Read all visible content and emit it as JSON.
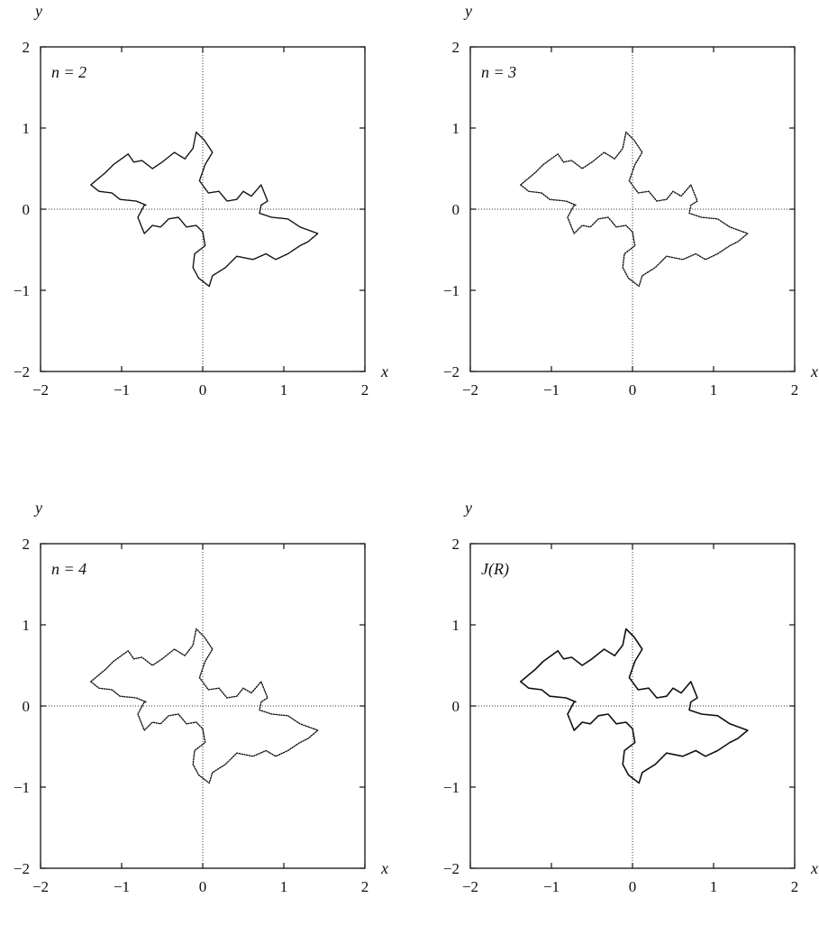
{
  "chart_data": [
    {
      "type": "scatter",
      "panel_label": "n = 2",
      "xlabel": "x",
      "ylabel": "y",
      "xlim": [
        -2,
        2
      ],
      "ylim": [
        -2,
        2
      ],
      "xticks": [
        "−2",
        "−1",
        "0",
        "1",
        "2"
      ],
      "yticks": [
        "−2",
        "−1",
        "0",
        "1",
        "2"
      ],
      "zero_lines": "dotted",
      "points": "dense dotted point set approximating the Julia set",
      "outline": [
        [
          -1.38,
          0.3
        ],
        [
          -1.2,
          0.45
        ],
        [
          -1.1,
          0.55
        ],
        [
          -0.92,
          0.68
        ],
        [
          -0.85,
          0.58
        ],
        [
          -0.75,
          0.6
        ],
        [
          -0.62,
          0.5
        ],
        [
          -0.5,
          0.58
        ],
        [
          -0.35,
          0.7
        ],
        [
          -0.22,
          0.62
        ],
        [
          -0.12,
          0.75
        ],
        [
          -0.08,
          0.95
        ],
        [
          0.02,
          0.85
        ],
        [
          0.12,
          0.7
        ],
        [
          0.03,
          0.55
        ],
        [
          -0.04,
          0.35
        ],
        [
          0.07,
          0.2
        ],
        [
          0.2,
          0.22
        ],
        [
          0.3,
          0.1
        ],
        [
          0.42,
          0.12
        ],
        [
          0.5,
          0.22
        ],
        [
          0.6,
          0.16
        ],
        [
          0.72,
          0.3
        ],
        [
          0.8,
          0.1
        ],
        [
          0.72,
          0.05
        ],
        [
          0.7,
          -0.05
        ],
        [
          0.85,
          -0.1
        ],
        [
          1.05,
          -0.12
        ],
        [
          1.2,
          -0.22
        ],
        [
          1.42,
          -0.3
        ],
        [
          1.3,
          -0.4
        ],
        [
          1.2,
          -0.45
        ],
        [
          1.05,
          -0.55
        ],
        [
          0.9,
          -0.62
        ],
        [
          0.78,
          -0.55
        ],
        [
          0.62,
          -0.62
        ],
        [
          0.42,
          -0.58
        ],
        [
          0.28,
          -0.72
        ],
        [
          0.12,
          -0.82
        ],
        [
          0.08,
          -0.95
        ],
        [
          -0.05,
          -0.85
        ],
        [
          -0.12,
          -0.72
        ],
        [
          -0.1,
          -0.55
        ],
        [
          0.03,
          -0.45
        ],
        [
          0.0,
          -0.28
        ],
        [
          -0.08,
          -0.2
        ],
        [
          -0.2,
          -0.22
        ],
        [
          -0.3,
          -0.1
        ],
        [
          -0.42,
          -0.12
        ],
        [
          -0.52,
          -0.22
        ],
        [
          -0.62,
          -0.2
        ],
        [
          -0.72,
          -0.3
        ],
        [
          -0.8,
          -0.1
        ],
        [
          -0.72,
          0.05
        ],
        [
          -0.7,
          0.05
        ],
        [
          -0.82,
          0.1
        ],
        [
          -1.02,
          0.12
        ],
        [
          -1.12,
          0.2
        ],
        [
          -1.28,
          0.22
        ],
        [
          -1.38,
          0.3
        ]
      ]
    },
    {
      "type": "scatter",
      "panel_label": "n = 3",
      "xlabel": "x",
      "ylabel": "y",
      "xlim": [
        -2,
        2
      ],
      "ylim": [
        -2,
        2
      ],
      "xticks": [
        "−2",
        "−1",
        "0",
        "1",
        "2"
      ],
      "yticks": [
        "−2",
        "−1",
        "0",
        "1",
        "2"
      ],
      "zero_lines": "dotted",
      "points": "dotted point set approximating the Julia set",
      "outline": [
        [
          -1.38,
          0.3
        ],
        [
          -1.2,
          0.45
        ],
        [
          -1.1,
          0.55
        ],
        [
          -0.92,
          0.68
        ],
        [
          -0.85,
          0.58
        ],
        [
          -0.75,
          0.6
        ],
        [
          -0.62,
          0.5
        ],
        [
          -0.5,
          0.58
        ],
        [
          -0.35,
          0.7
        ],
        [
          -0.22,
          0.62
        ],
        [
          -0.12,
          0.75
        ],
        [
          -0.08,
          0.95
        ],
        [
          0.02,
          0.85
        ],
        [
          0.12,
          0.7
        ],
        [
          0.03,
          0.55
        ],
        [
          -0.04,
          0.35
        ],
        [
          0.07,
          0.2
        ],
        [
          0.2,
          0.22
        ],
        [
          0.3,
          0.1
        ],
        [
          0.42,
          0.12
        ],
        [
          0.5,
          0.22
        ],
        [
          0.6,
          0.16
        ],
        [
          0.72,
          0.3
        ],
        [
          0.8,
          0.1
        ],
        [
          0.72,
          0.05
        ],
        [
          0.7,
          -0.05
        ],
        [
          0.85,
          -0.1
        ],
        [
          1.05,
          -0.12
        ],
        [
          1.2,
          -0.22
        ],
        [
          1.42,
          -0.3
        ],
        [
          1.3,
          -0.4
        ],
        [
          1.2,
          -0.45
        ],
        [
          1.05,
          -0.55
        ],
        [
          0.9,
          -0.62
        ],
        [
          0.78,
          -0.55
        ],
        [
          0.62,
          -0.62
        ],
        [
          0.42,
          -0.58
        ],
        [
          0.28,
          -0.72
        ],
        [
          0.12,
          -0.82
        ],
        [
          0.08,
          -0.95
        ],
        [
          -0.05,
          -0.85
        ],
        [
          -0.12,
          -0.72
        ],
        [
          -0.1,
          -0.55
        ],
        [
          0.03,
          -0.45
        ],
        [
          0.0,
          -0.28
        ],
        [
          -0.08,
          -0.2
        ],
        [
          -0.2,
          -0.22
        ],
        [
          -0.3,
          -0.1
        ],
        [
          -0.42,
          -0.12
        ],
        [
          -0.52,
          -0.22
        ],
        [
          -0.62,
          -0.2
        ],
        [
          -0.72,
          -0.3
        ],
        [
          -0.8,
          -0.1
        ],
        [
          -0.72,
          0.05
        ],
        [
          -0.7,
          0.05
        ],
        [
          -0.82,
          0.1
        ],
        [
          -1.02,
          0.12
        ],
        [
          -1.12,
          0.2
        ],
        [
          -1.28,
          0.22
        ],
        [
          -1.38,
          0.3
        ]
      ]
    },
    {
      "type": "scatter",
      "panel_label": "n = 4",
      "xlabel": "x",
      "ylabel": "y",
      "xlim": [
        -2,
        2
      ],
      "ylim": [
        -2,
        2
      ],
      "xticks": [
        "−2",
        "−1",
        "0",
        "1",
        "2"
      ],
      "yticks": [
        "−2",
        "−1",
        "0",
        "1",
        "2"
      ],
      "zero_lines": "dotted",
      "points": "dotted point set approximating the Julia set",
      "outline": [
        [
          -1.38,
          0.3
        ],
        [
          -1.2,
          0.45
        ],
        [
          -1.1,
          0.55
        ],
        [
          -0.92,
          0.68
        ],
        [
          -0.85,
          0.58
        ],
        [
          -0.75,
          0.6
        ],
        [
          -0.62,
          0.5
        ],
        [
          -0.5,
          0.58
        ],
        [
          -0.35,
          0.7
        ],
        [
          -0.22,
          0.62
        ],
        [
          -0.12,
          0.75
        ],
        [
          -0.08,
          0.95
        ],
        [
          0.02,
          0.85
        ],
        [
          0.12,
          0.7
        ],
        [
          0.03,
          0.55
        ],
        [
          -0.04,
          0.35
        ],
        [
          0.07,
          0.2
        ],
        [
          0.2,
          0.22
        ],
        [
          0.3,
          0.1
        ],
        [
          0.42,
          0.12
        ],
        [
          0.5,
          0.22
        ],
        [
          0.6,
          0.16
        ],
        [
          0.72,
          0.3
        ],
        [
          0.8,
          0.1
        ],
        [
          0.72,
          0.05
        ],
        [
          0.7,
          -0.05
        ],
        [
          0.85,
          -0.1
        ],
        [
          1.05,
          -0.12
        ],
        [
          1.2,
          -0.22
        ],
        [
          1.42,
          -0.3
        ],
        [
          1.3,
          -0.4
        ],
        [
          1.2,
          -0.45
        ],
        [
          1.05,
          -0.55
        ],
        [
          0.9,
          -0.62
        ],
        [
          0.78,
          -0.55
        ],
        [
          0.62,
          -0.62
        ],
        [
          0.42,
          -0.58
        ],
        [
          0.28,
          -0.72
        ],
        [
          0.12,
          -0.82
        ],
        [
          0.08,
          -0.95
        ],
        [
          -0.05,
          -0.85
        ],
        [
          -0.12,
          -0.72
        ],
        [
          -0.1,
          -0.55
        ],
        [
          0.03,
          -0.45
        ],
        [
          0.0,
          -0.28
        ],
        [
          -0.08,
          -0.2
        ],
        [
          -0.2,
          -0.22
        ],
        [
          -0.3,
          -0.1
        ],
        [
          -0.42,
          -0.12
        ],
        [
          -0.52,
          -0.22
        ],
        [
          -0.62,
          -0.2
        ],
        [
          -0.72,
          -0.3
        ],
        [
          -0.8,
          -0.1
        ],
        [
          -0.72,
          0.05
        ],
        [
          -0.7,
          0.05
        ],
        [
          -0.82,
          0.1
        ],
        [
          -1.02,
          0.12
        ],
        [
          -1.12,
          0.2
        ],
        [
          -1.28,
          0.22
        ],
        [
          -1.38,
          0.3
        ]
      ]
    },
    {
      "type": "line",
      "panel_label": "J(R)",
      "xlabel": "x",
      "ylabel": "y",
      "xlim": [
        -2,
        2
      ],
      "ylim": [
        -2,
        2
      ],
      "xticks": [
        "−2",
        "−1",
        "0",
        "1",
        "2"
      ],
      "yticks": [
        "−2",
        "−1",
        "0",
        "1",
        "2"
      ],
      "zero_lines": "dotted",
      "points": "solid curve tracing the Julia set",
      "outline": [
        [
          -1.38,
          0.3
        ],
        [
          -1.2,
          0.45
        ],
        [
          -1.1,
          0.55
        ],
        [
          -0.92,
          0.68
        ],
        [
          -0.85,
          0.58
        ],
        [
          -0.75,
          0.6
        ],
        [
          -0.62,
          0.5
        ],
        [
          -0.5,
          0.58
        ],
        [
          -0.35,
          0.7
        ],
        [
          -0.22,
          0.62
        ],
        [
          -0.12,
          0.75
        ],
        [
          -0.08,
          0.95
        ],
        [
          0.02,
          0.85
        ],
        [
          0.12,
          0.7
        ],
        [
          0.03,
          0.55
        ],
        [
          -0.04,
          0.35
        ],
        [
          0.07,
          0.2
        ],
        [
          0.2,
          0.22
        ],
        [
          0.3,
          0.1
        ],
        [
          0.42,
          0.12
        ],
        [
          0.5,
          0.22
        ],
        [
          0.6,
          0.16
        ],
        [
          0.72,
          0.3
        ],
        [
          0.8,
          0.1
        ],
        [
          0.72,
          0.05
        ],
        [
          0.7,
          -0.05
        ],
        [
          0.85,
          -0.1
        ],
        [
          1.05,
          -0.12
        ],
        [
          1.2,
          -0.22
        ],
        [
          1.42,
          -0.3
        ],
        [
          1.3,
          -0.4
        ],
        [
          1.2,
          -0.45
        ],
        [
          1.05,
          -0.55
        ],
        [
          0.9,
          -0.62
        ],
        [
          0.78,
          -0.55
        ],
        [
          0.62,
          -0.62
        ],
        [
          0.42,
          -0.58
        ],
        [
          0.28,
          -0.72
        ],
        [
          0.12,
          -0.82
        ],
        [
          0.08,
          -0.95
        ],
        [
          -0.05,
          -0.85
        ],
        [
          -0.12,
          -0.72
        ],
        [
          -0.1,
          -0.55
        ],
        [
          0.03,
          -0.45
        ],
        [
          0.0,
          -0.28
        ],
        [
          -0.08,
          -0.2
        ],
        [
          -0.2,
          -0.22
        ],
        [
          -0.3,
          -0.1
        ],
        [
          -0.42,
          -0.12
        ],
        [
          -0.52,
          -0.22
        ],
        [
          -0.62,
          -0.2
        ],
        [
          -0.72,
          -0.3
        ],
        [
          -0.8,
          -0.1
        ],
        [
          -0.72,
          0.05
        ],
        [
          -0.7,
          0.05
        ],
        [
          -0.82,
          0.1
        ],
        [
          -1.02,
          0.12
        ],
        [
          -1.12,
          0.2
        ],
        [
          -1.28,
          0.22
        ],
        [
          -1.38,
          0.3
        ]
      ]
    }
  ]
}
